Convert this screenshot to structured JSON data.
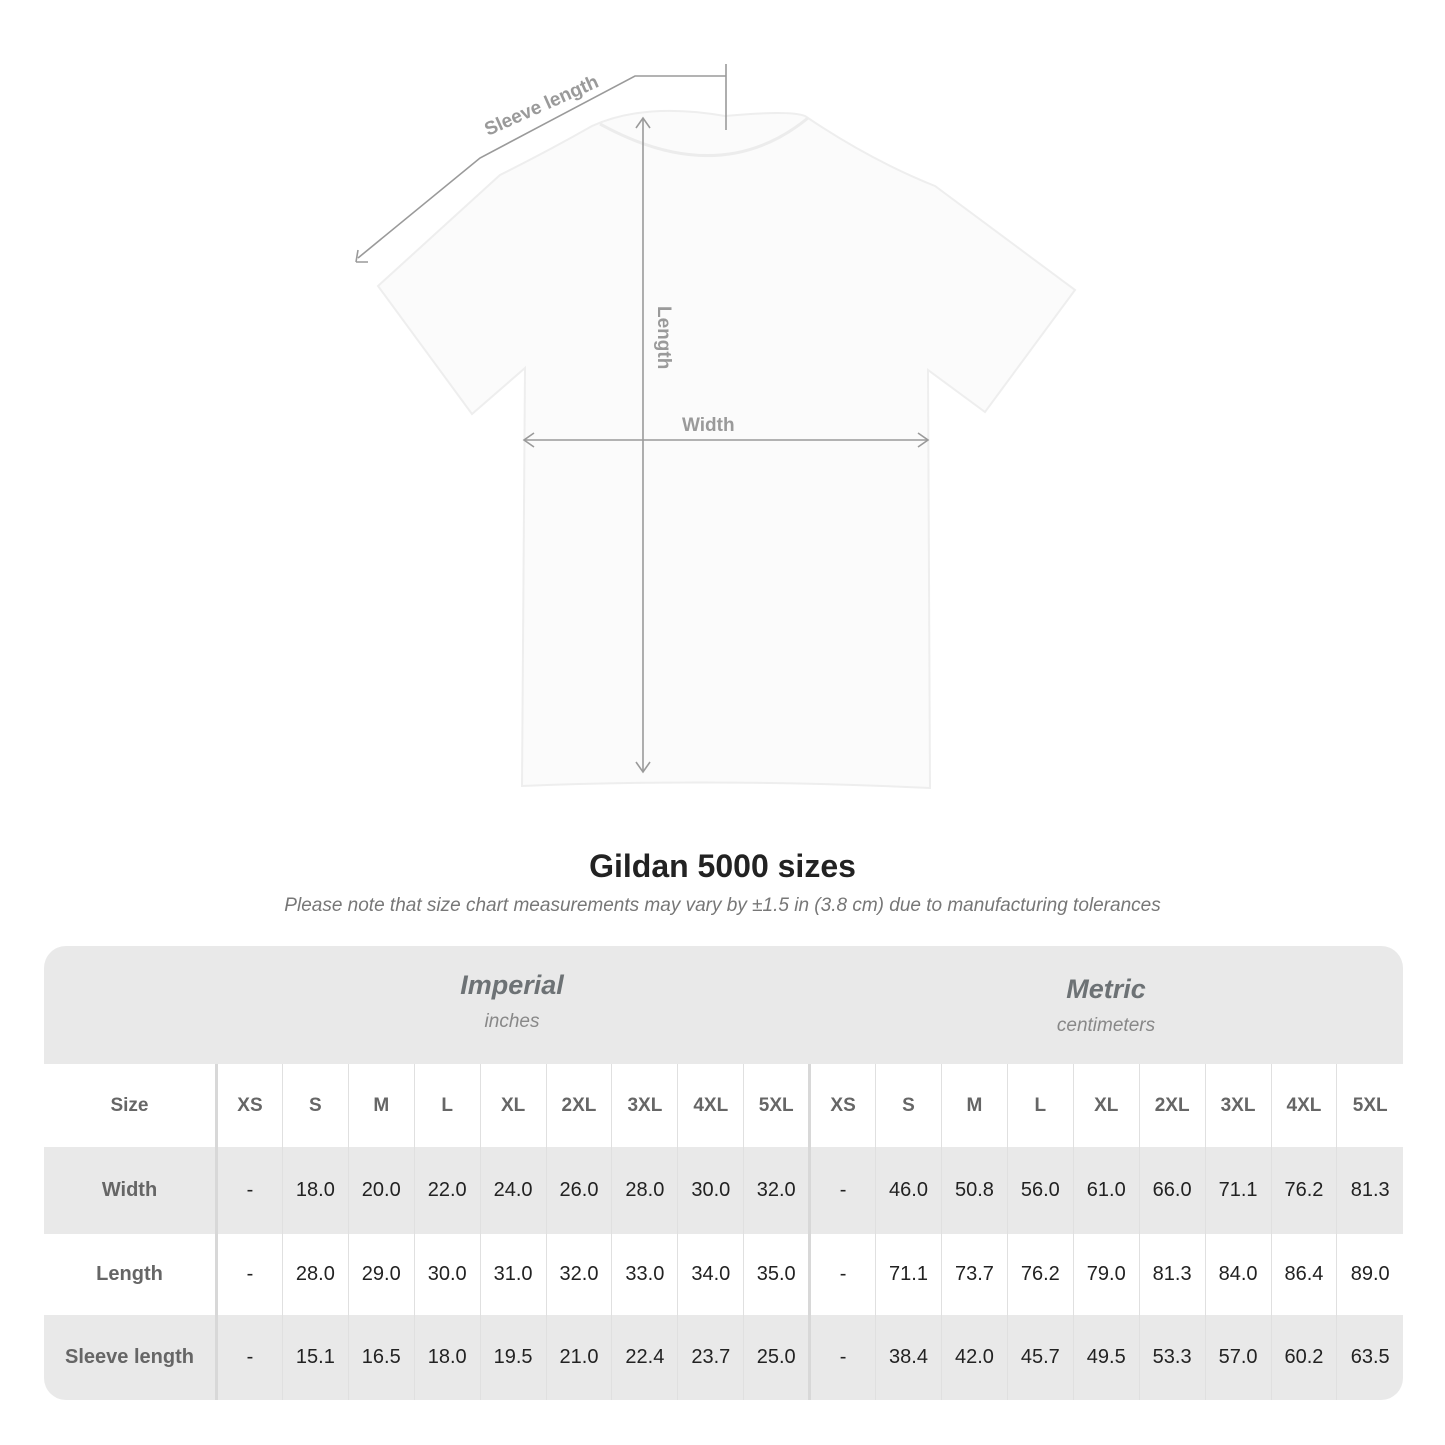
{
  "diagram": {
    "labels": {
      "sleeve": "Sleeve length",
      "length": "Length",
      "width": "Width"
    },
    "line_color": "#9a9a9a"
  },
  "title": "Gildan 5000 sizes",
  "note": "Please note that size chart measurements may vary by ±1.5 in (3.8 cm) due to manufacturing tolerances",
  "table": {
    "imperial": {
      "name": "Imperial",
      "unit": "inches"
    },
    "metric": {
      "name": "Metric",
      "unit": "centimeters"
    },
    "size_label": "Size",
    "sizes": [
      "XS",
      "S",
      "M",
      "L",
      "XL",
      "2XL",
      "3XL",
      "4XL",
      "5XL"
    ],
    "rows": [
      {
        "label": "Width",
        "imperial": [
          "-",
          "18.0",
          "20.0",
          "22.0",
          "24.0",
          "26.0",
          "28.0",
          "30.0",
          "32.0"
        ],
        "metric": [
          "-",
          "46.0",
          "50.8",
          "56.0",
          "61.0",
          "66.0",
          "71.1",
          "76.2",
          "81.3"
        ]
      },
      {
        "label": "Length",
        "imperial": [
          "-",
          "28.0",
          "29.0",
          "30.0",
          "31.0",
          "32.0",
          "33.0",
          "34.0",
          "35.0"
        ],
        "metric": [
          "-",
          "71.1",
          "73.7",
          "76.2",
          "79.0",
          "81.3",
          "84.0",
          "86.4",
          "89.0"
        ]
      },
      {
        "label": "Sleeve length",
        "imperial": [
          "-",
          "15.1",
          "16.5",
          "18.0",
          "19.5",
          "21.0",
          "22.4",
          "23.7",
          "25.0"
        ],
        "metric": [
          "-",
          "38.4",
          "42.0",
          "45.7",
          "49.5",
          "53.3",
          "57.0",
          "60.2",
          "63.5"
        ]
      }
    ],
    "header_bg": "#e9e9e9"
  }
}
